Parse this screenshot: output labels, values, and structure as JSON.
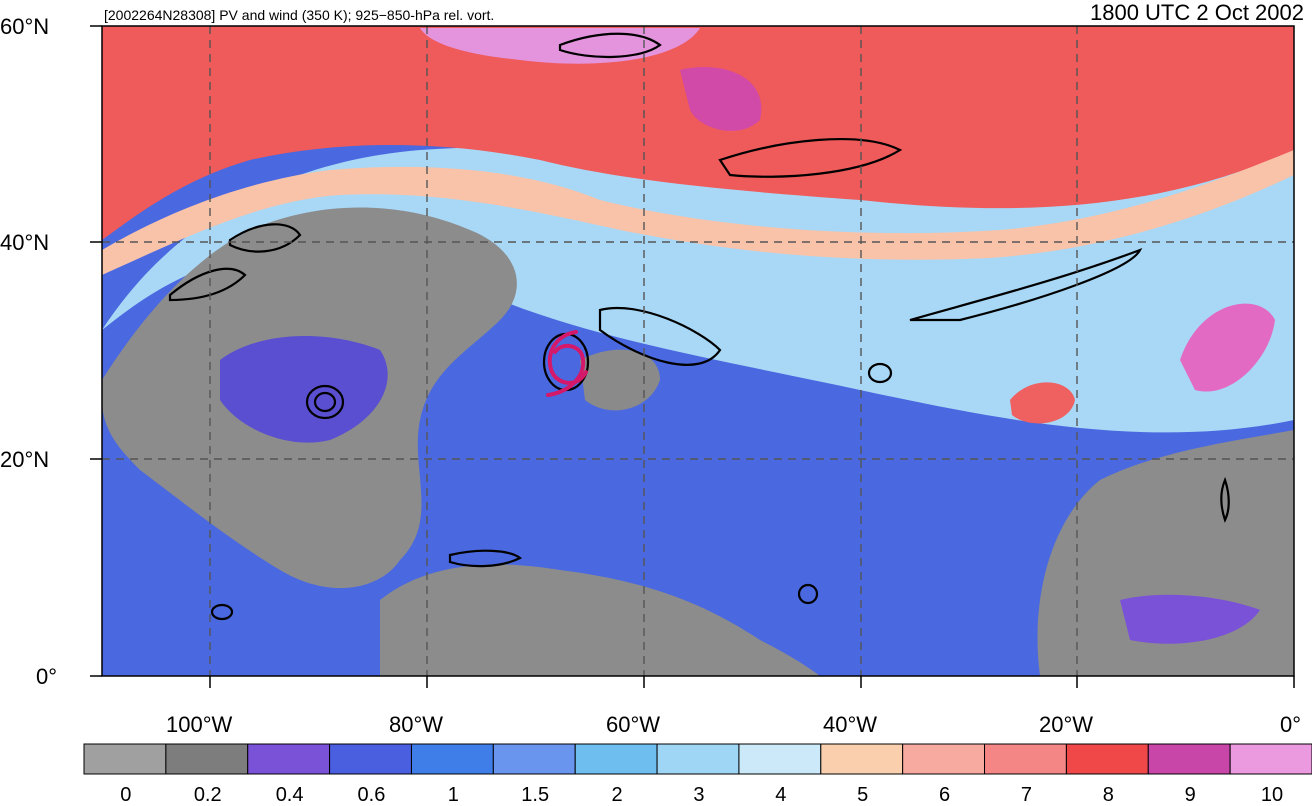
{
  "header": {
    "left_title": "[2002264N28308] PV and wind (350 K); 925−850-hPa rel. vort.",
    "right_title": "1800 UTC 2 Oct 2002"
  },
  "axes": {
    "lat_labels": [
      "60°N",
      "40°N",
      "20°N",
      "0°"
    ],
    "lon_labels": [
      "100°W",
      "80°W",
      "60°W",
      "40°W",
      "20°W",
      "0°"
    ]
  },
  "colorbar": {
    "labels": [
      "0",
      "0.2",
      "0.4",
      "0.6",
      "1",
      "1.5",
      "2",
      "3",
      "4",
      "5",
      "6",
      "7",
      "8",
      "9",
      "10"
    ],
    "colors": [
      "#a0a0a0",
      "#7d7d7d",
      "#7a52d8",
      "#4a5ee0",
      "#3f7ee8",
      "#6a95ee",
      "#6fbef0",
      "#9fd5f5",
      "#cbe9f8",
      "#f9cfae",
      "#f7aba0",
      "#f48686",
      "#f04848",
      "#c746a8",
      "#ec9ae0"
    ]
  },
  "palette": {
    "land_grey": "#909090",
    "ocean_blue": "#4a68e0",
    "jet_red": "#ee5050",
    "storm_marker": "#d4186a"
  }
}
